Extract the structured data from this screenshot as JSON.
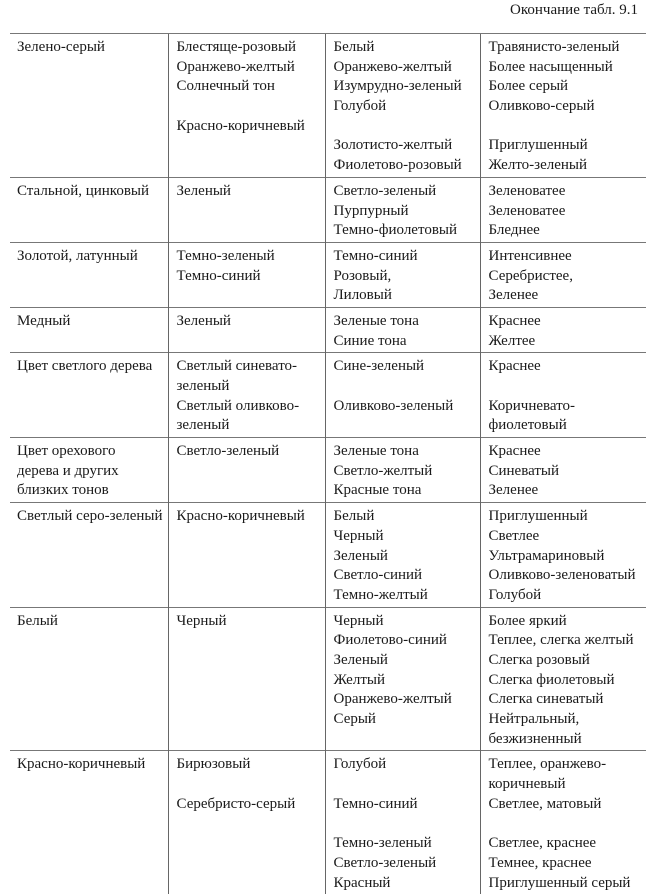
{
  "caption": "Окончание табл. 9.1",
  "rows": [
    [
      [
        "Зелено-серый"
      ],
      [
        "Блестяще-розовый",
        "Оранжево-желтый",
        "Солнечный тон",
        "",
        "Красно-коричневый"
      ],
      [
        "Белый",
        "Оранжево-желтый",
        "Изумрудно-зеленый",
        "Голубой",
        "",
        "Золотисто-желтый",
        "Фиолетово-розовый"
      ],
      [
        "Травянисто-зеленый",
        "Более насыщенный",
        "Более серый",
        "Оливково-серый",
        "",
        "Приглушенный",
        "Желто-зеленый"
      ]
    ],
    [
      [
        "Стальной, цинковый"
      ],
      [
        "Зеленый"
      ],
      [
        "Светло-зеленый",
        "Пурпурный",
        "Темно-фиолетовый"
      ],
      [
        "Зеленоватее",
        "Зеленоватее",
        "Бледнее"
      ]
    ],
    [
      [
        "Золотой, латунный"
      ],
      [
        "Темно-зеленый",
        "Темно-синий"
      ],
      [
        "Темно-синий",
        "Розовый,",
        "Лиловый"
      ],
      [
        "Интенсивнее",
        "Серебристее,",
        "Зеленее"
      ]
    ],
    [
      [
        "Медный"
      ],
      [
        "Зеленый"
      ],
      [
        "Зеленые тона",
        "Синие тона"
      ],
      [
        "Краснее",
        "Желтее"
      ]
    ],
    [
      [
        "Цвет светлого дерева"
      ],
      [
        "Светлый синевато-",
        "зеленый",
        "Светлый оливково-",
        "зеленый"
      ],
      [
        "Сине-зеленый",
        "",
        "Оливково-зеленый"
      ],
      [
        "Краснее",
        "",
        "Коричневато-",
        "фиолетовый"
      ]
    ],
    [
      [
        "Цвет орехового",
        "дерева и других",
        "близких тонов"
      ],
      [
        "Светло-зеленый"
      ],
      [
        "Зеленые тона",
        "Светло-желтый",
        "Красные тона"
      ],
      [
        "Краснее",
        "Синеватый",
        "Зеленее"
      ]
    ],
    [
      [
        "Светлый серо-зеленый"
      ],
      [
        "Красно-коричневый"
      ],
      [
        "Белый",
        "Черный",
        "Зеленый",
        "Светло-синий",
        "Темно-желтый"
      ],
      [
        "Приглушенный",
        "Светлее",
        "Ультрамариновый",
        "Оливково-зеленоватый",
        "Голубой"
      ]
    ],
    [
      [
        "Белый"
      ],
      [
        "Черный"
      ],
      [
        "Черный",
        "Фиолетово-синий",
        "Зеленый",
        "Желтый",
        "Оранжево-желтый",
        "Серый"
      ],
      [
        "Более яркий",
        "Теплее, слегка желтый",
        "Слегка розовый",
        "Слегка фиолетовый",
        "Слегка синеватый",
        "Нейтральный,",
        "безжизненный"
      ]
    ],
    [
      [
        "Красно-коричневый"
      ],
      [
        "Бирюзовый",
        "",
        "Серебристо-серый"
      ],
      [
        "Голубой",
        "",
        "Темно-синий",
        "",
        "Темно-зеленый",
        "Светло-зеленый",
        "Красный"
      ],
      [
        "Теплее, оранжево-",
        "коричневый",
        "Светлее, матовый",
        "",
        "Светлее, краснее",
        "Темнее, краснее",
        "Приглушенный серый"
      ]
    ]
  ]
}
